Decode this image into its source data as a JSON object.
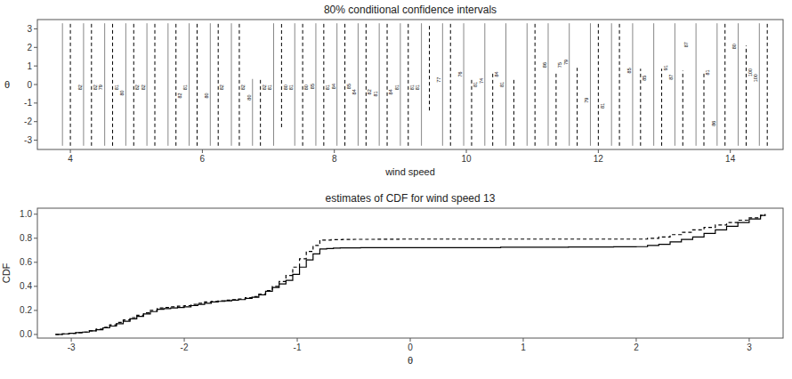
{
  "chart_data": [
    {
      "type": "interval",
      "title": "80% conditional confidence intervals",
      "x_label": "wind speed",
      "y_label": "θ",
      "xlim": [
        3.5,
        14.8
      ],
      "ylim": [
        -3.5,
        3.5
      ],
      "xticks": [
        4,
        6,
        8,
        10,
        12,
        14
      ],
      "yticks": [
        -3,
        -2,
        -1,
        0,
        1,
        2,
        3
      ],
      "grid": false,
      "series": [
        {
          "color": "#888888",
          "line_style": "solid",
          "x": [
            3.88,
            4.2,
            4.52,
            4.84,
            5.16,
            5.48,
            5.8,
            6.12,
            6.44,
            6.76,
            7.08,
            7.4,
            7.72,
            8.04,
            8.36,
            8.68,
            9.0,
            9.32,
            9.64,
            9.96,
            10.28,
            10.6,
            10.92,
            11.24,
            11.56,
            11.88,
            12.2,
            12.52,
            12.84,
            13.16,
            13.48,
            13.8,
            14.12,
            14.44
          ],
          "low": [
            -3.3,
            -3.3,
            -3.3,
            -3.3,
            -3.3,
            -3.3,
            -3.3,
            -3.3,
            -3.3,
            -3.3,
            -3.3,
            -3.3,
            -3.3,
            -3.3,
            -3.3,
            -3.3,
            -3.3,
            -3.3,
            -3.3,
            -3.3,
            -3.3,
            -3.3,
            -3.3,
            -3.3,
            -3.3,
            -3.3,
            -3.3,
            -3.3,
            -3.3,
            -3.3,
            -3.3,
            -3.3,
            -3.3,
            -3.3
          ],
          "high": [
            3.3,
            3.3,
            3.3,
            3.3,
            3.3,
            3.3,
            3.3,
            3.3,
            3.3,
            0.3,
            3.3,
            3.3,
            3.3,
            3.3,
            3.3,
            3.3,
            3.3,
            3.3,
            3.3,
            3.3,
            3.3,
            3.3,
            3.3,
            3.3,
            3.3,
            3.3,
            3.3,
            3.3,
            3.3,
            3.3,
            3.3,
            3.3,
            3.3,
            3.3
          ],
          "labels": [
            null,
            "82",
            "79",
            "80",
            "82",
            null,
            "81",
            "80",
            null,
            "80",
            "81",
            "81",
            "85",
            "84",
            "84",
            "81",
            "81",
            "81",
            "77",
            "76",
            "74",
            "81",
            null,
            "86",
            "79",
            "79",
            null,
            "85",
            null,
            "87",
            null,
            "86",
            "80",
            "100"
          ],
          "label_y": [
            null,
            -0.15,
            -0.15,
            -0.45,
            -0.15,
            null,
            -0.15,
            -0.6,
            null,
            -0.7,
            -0.15,
            -0.15,
            -0.1,
            -0.1,
            -0.4,
            -0.5,
            -0.15,
            -0.15,
            0.25,
            0.55,
            0.2,
            0.0,
            null,
            1.05,
            1.2,
            -0.85,
            null,
            0.75,
            null,
            0.4,
            null,
            -2.1,
            2.05,
            0.35
          ]
        },
        {
          "color": "#000000",
          "line_style": "dashed",
          "x": [
            4.0,
            4.32,
            4.64,
            4.96,
            5.28,
            5.6,
            5.92,
            6.24,
            6.56,
            6.88,
            7.2,
            7.52,
            7.84,
            8.16,
            8.48,
            8.8,
            9.12,
            9.44,
            9.76,
            10.08,
            10.4,
            10.72,
            11.04,
            11.36,
            11.68,
            12.0,
            12.32,
            12.64,
            12.96,
            13.28,
            13.6,
            13.92,
            14.24,
            14.56
          ],
          "low": [
            -3.3,
            -3.3,
            -3.3,
            -3.3,
            -3.3,
            -3.3,
            -3.3,
            -3.3,
            -3.3,
            -3.3,
            -2.3,
            -3.3,
            -3.3,
            -3.3,
            -3.3,
            -3.3,
            -3.3,
            -1.4,
            -3.3,
            -3.3,
            -3.3,
            -3.3,
            -3.3,
            -3.3,
            -3.3,
            -3.3,
            -3.3,
            -3.3,
            -3.3,
            -3.3,
            -3.3,
            -3.3,
            -3.3,
            -3.3
          ],
          "high": [
            3.3,
            3.3,
            3.3,
            3.3,
            3.3,
            3.3,
            3.3,
            3.3,
            3.3,
            0.3,
            3.3,
            3.3,
            3.3,
            3.3,
            3.3,
            3.3,
            3.3,
            3.3,
            3.3,
            0.3,
            0.7,
            0.3,
            3.3,
            0.7,
            0.9,
            3.3,
            3.3,
            0.85,
            0.85,
            0.75,
            0.6,
            3.3,
            2.1,
            3.3
          ],
          "labels": [
            null,
            "82",
            "81",
            "82",
            null,
            "82",
            null,
            "82",
            "82",
            "82",
            "80",
            "80",
            "81",
            "85",
            "82",
            "84",
            "81",
            null,
            null,
            "81",
            "84",
            null,
            null,
            "75",
            null,
            "81",
            null,
            "85",
            "91",
            "87",
            "81",
            null,
            "100",
            null
          ],
          "label_y": [
            null,
            -0.15,
            -0.15,
            -0.15,
            null,
            -0.6,
            null,
            -0.15,
            -0.15,
            -0.15,
            -0.15,
            -0.15,
            -0.15,
            -0.1,
            -0.4,
            -0.4,
            -0.15,
            null,
            null,
            0.0,
            0.55,
            null,
            null,
            1.05,
            null,
            -1.15,
            null,
            0.35,
            0.9,
            2.15,
            0.65,
            null,
            0.65,
            null
          ]
        }
      ]
    },
    {
      "type": "step",
      "title": "estimates of CDF for wind speed 13",
      "x_label": "θ",
      "y_label": "CDF",
      "xlim": [
        -3.3,
        3.3
      ],
      "ylim": [
        -0.03,
        1.05
      ],
      "xticks": [
        -3,
        -2,
        -1,
        0,
        1,
        2,
        3
      ],
      "yticks": [
        {
          "value": 0.0,
          "label": "0.0"
        },
        0.2,
        0.4,
        0.6,
        0.8,
        {
          "value": 1.0,
          "label": "1.0"
        }
      ],
      "grid": false,
      "series": [
        {
          "color": "#000000",
          "line_style": "solid",
          "x": [
            -3.14,
            -3.08,
            -3.02,
            -2.96,
            -2.9,
            -2.84,
            -2.78,
            -2.72,
            -2.66,
            -2.6,
            -2.54,
            -2.48,
            -2.42,
            -2.36,
            -2.3,
            -2.24,
            -2.18,
            -2.12,
            -2.06,
            -2.0,
            -1.94,
            -1.88,
            -1.82,
            -1.76,
            -1.7,
            -1.64,
            -1.58,
            -1.52,
            -1.46,
            -1.4,
            -1.34,
            -1.28,
            -1.22,
            -1.16,
            -1.1,
            -1.04,
            -0.98,
            -0.92,
            -0.86,
            -0.8,
            -0.74,
            -0.68,
            -0.62,
            -0.56,
            -0.5,
            -0.44,
            -0.38,
            -0.32,
            -0.26,
            -0.2,
            -0.14,
            -0.08,
            -0.02,
            0.04,
            0.1,
            0.16,
            0.22,
            0.28,
            0.34,
            0.4,
            0.6,
            0.8,
            1.0,
            1.2,
            1.4,
            1.6,
            1.8,
            2.0,
            2.1,
            2.2,
            2.3,
            2.4,
            2.5,
            2.6,
            2.7,
            2.8,
            2.9,
            3.0,
            3.1,
            3.14
          ],
          "values": [
            0.0,
            0.005,
            0.01,
            0.015,
            0.02,
            0.03,
            0.04,
            0.055,
            0.07,
            0.09,
            0.11,
            0.13,
            0.15,
            0.17,
            0.19,
            0.21,
            0.215,
            0.22,
            0.225,
            0.23,
            0.24,
            0.25,
            0.26,
            0.27,
            0.275,
            0.28,
            0.285,
            0.29,
            0.3,
            0.31,
            0.33,
            0.36,
            0.39,
            0.42,
            0.45,
            0.5,
            0.56,
            0.62,
            0.67,
            0.71,
            0.715,
            0.718,
            0.72,
            0.72,
            0.72,
            0.722,
            0.722,
            0.722,
            0.722,
            0.722,
            0.722,
            0.722,
            0.722,
            0.722,
            0.722,
            0.722,
            0.722,
            0.722,
            0.722,
            0.722,
            0.722,
            0.725,
            0.725,
            0.726,
            0.727,
            0.728,
            0.729,
            0.73,
            0.74,
            0.75,
            0.77,
            0.79,
            0.81,
            0.84,
            0.87,
            0.9,
            0.93,
            0.96,
            0.99,
            1.0
          ]
        },
        {
          "color": "#000000",
          "line_style": "dashed",
          "x": [
            -3.14,
            -3.08,
            -3.02,
            -2.96,
            -2.9,
            -2.84,
            -2.78,
            -2.72,
            -2.66,
            -2.6,
            -2.54,
            -2.48,
            -2.42,
            -2.36,
            -2.3,
            -2.24,
            -2.18,
            -2.12,
            -2.06,
            -2.0,
            -1.94,
            -1.88,
            -1.82,
            -1.76,
            -1.7,
            -1.64,
            -1.58,
            -1.52,
            -1.46,
            -1.4,
            -1.34,
            -1.28,
            -1.22,
            -1.16,
            -1.1,
            -1.04,
            -0.98,
            -0.92,
            -0.86,
            -0.8,
            -0.7,
            -0.6,
            -0.5,
            -0.3,
            -0.1,
            0.1,
            0.5,
            1.0,
            1.5,
            2.0,
            2.1,
            2.2,
            2.3,
            2.4,
            2.5,
            2.6,
            2.7,
            2.8,
            2.9,
            3.0,
            3.1,
            3.14
          ],
          "values": [
            0.0,
            0.005,
            0.01,
            0.015,
            0.02,
            0.03,
            0.045,
            0.06,
            0.08,
            0.1,
            0.12,
            0.14,
            0.16,
            0.18,
            0.2,
            0.22,
            0.225,
            0.23,
            0.235,
            0.24,
            0.25,
            0.26,
            0.27,
            0.275,
            0.28,
            0.285,
            0.29,
            0.295,
            0.305,
            0.315,
            0.335,
            0.365,
            0.4,
            0.44,
            0.49,
            0.56,
            0.63,
            0.69,
            0.74,
            0.785,
            0.788,
            0.79,
            0.791,
            0.792,
            0.793,
            0.793,
            0.793,
            0.793,
            0.793,
            0.793,
            0.8,
            0.81,
            0.83,
            0.85,
            0.87,
            0.89,
            0.91,
            0.93,
            0.95,
            0.97,
            0.99,
            1.0
          ]
        }
      ]
    }
  ]
}
